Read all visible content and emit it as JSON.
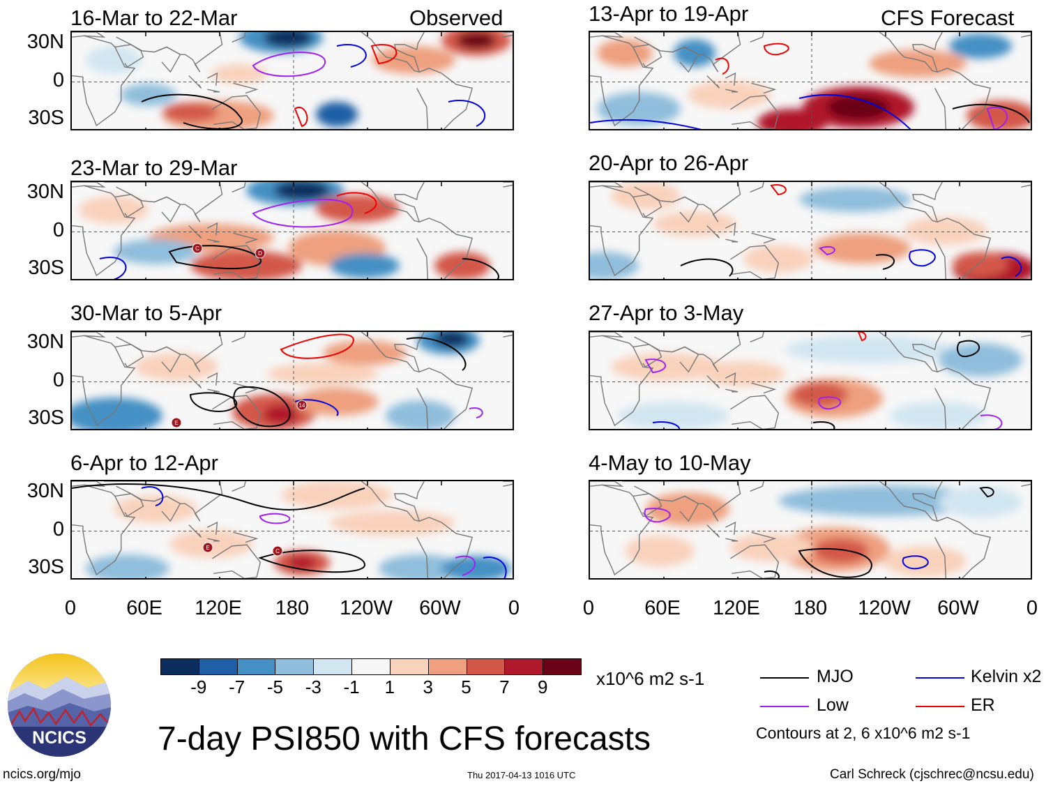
{
  "chart_data": {
    "type": "heatmap",
    "title": "7-day PSI850 with CFS forecasts",
    "variable": "PSI850",
    "units": "x10^6 m2 s-1",
    "observed_label": "Observed",
    "forecast_label": "CFS Forecast",
    "x_ticks": [
      "0",
      "60E",
      "120E",
      "180",
      "120W",
      "60W",
      "0"
    ],
    "y_ticks": [
      "30N",
      "0",
      "30S"
    ],
    "colorbar": {
      "labels": [
        "-9",
        "-7",
        "-5",
        "-3",
        "-1",
        "1",
        "3",
        "5",
        "7",
        "9"
      ],
      "colors": [
        "#0a2d5e",
        "#1f5fa6",
        "#4590c4",
        "#8fbedc",
        "#d2e6f1",
        "#f7f7f7",
        "#f9d2bc",
        "#eea07f",
        "#d3584a",
        "#b0182c",
        "#6b0318"
      ]
    },
    "contour_legend": [
      {
        "name": "MJO",
        "color": "#000000"
      },
      {
        "name": "Kelvin x2",
        "color": "#0000dd"
      },
      {
        "name": "Low",
        "color": "#a020f0"
      },
      {
        "name": "ER",
        "color": "#ee0000"
      }
    ],
    "contour_note": "Contours at 2, 6 x10^6 m2 s-1",
    "panels": [
      {
        "period": "16-Mar to 22-Mar",
        "kind": "observed",
        "tc_labels": []
      },
      {
        "period": "23-Mar to 29-Mar",
        "kind": "observed",
        "tc_labels": [
          "C",
          "D"
        ]
      },
      {
        "period": "30-Mar to 5-Apr",
        "kind": "observed",
        "tc_labels": [
          "E",
          "14"
        ]
      },
      {
        "period": "6-Apr to 12-Apr",
        "kind": "observed",
        "tc_labels": [
          "E",
          "C"
        ]
      },
      {
        "period": "13-Apr to 19-Apr",
        "kind": "forecast",
        "tc_labels": []
      },
      {
        "period": "20-Apr to 26-Apr",
        "kind": "forecast",
        "tc_labels": []
      },
      {
        "period": "27-Apr to 3-May",
        "kind": "forecast",
        "tc_labels": []
      },
      {
        "period": "4-May to 10-May",
        "kind": "forecast",
        "tc_labels": []
      }
    ]
  },
  "footer": {
    "logo_text": "NCICS",
    "url": "ncics.org/mjo",
    "timestamp": "Thu 2017-04-13 1016 UTC",
    "credit": "Carl Schreck (cjschrec@ncsu.edu)"
  }
}
